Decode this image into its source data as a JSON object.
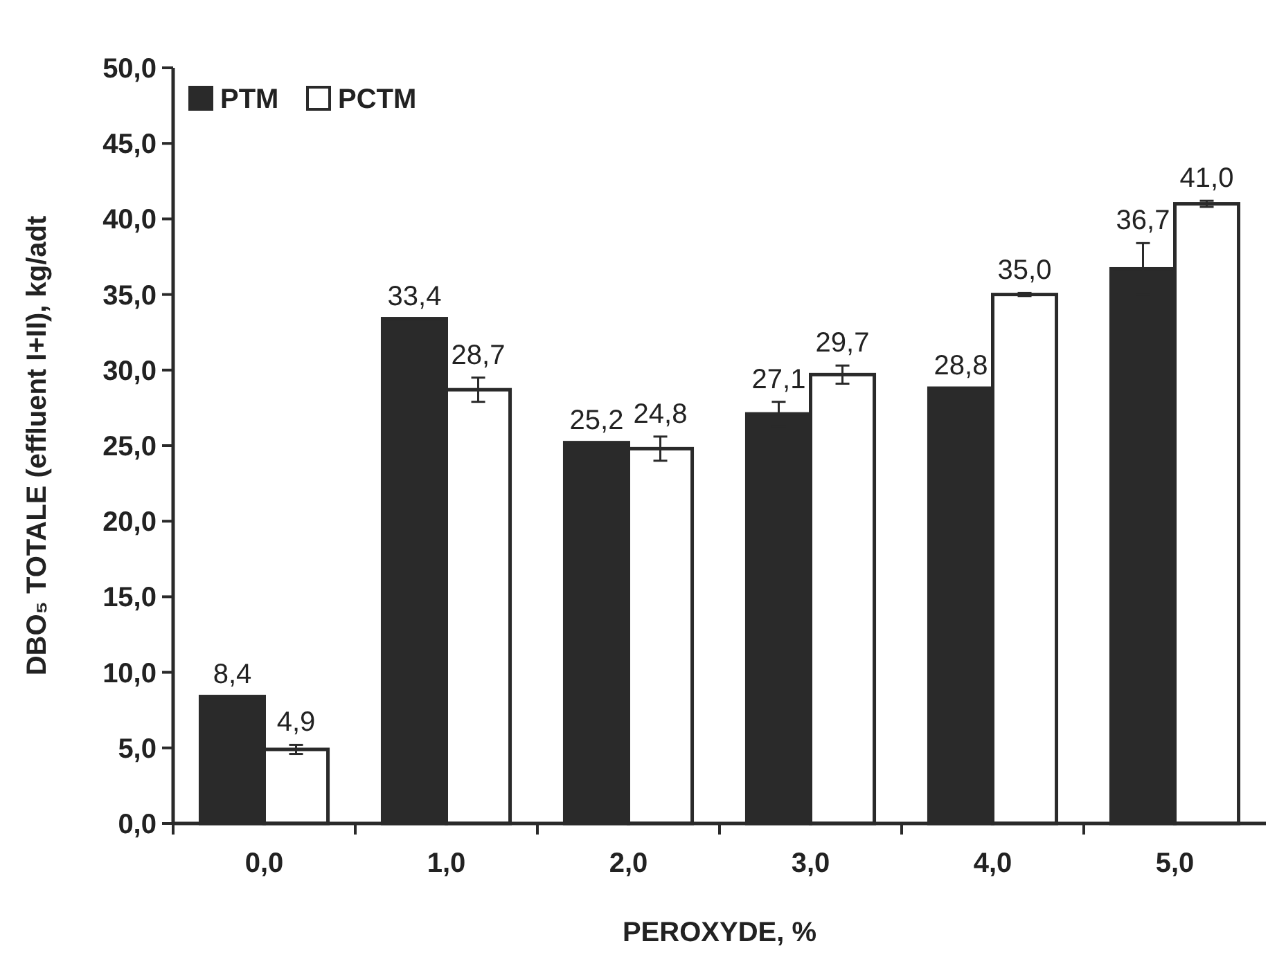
{
  "chart_data": {
    "type": "bar",
    "xlabel": "PEROXYDE, %",
    "ylabel": "DBO₅ TOTALE (effluent I+II), kg/adt",
    "categories": [
      "0,0",
      "1,0",
      "2,0",
      "3,0",
      "4,0",
      "5,0"
    ],
    "series": [
      {
        "name": "PTM",
        "color": "#2a2a2a",
        "values": [
          8.4,
          33.4,
          25.2,
          27.1,
          28.8,
          36.7
        ],
        "errors": [
          null,
          null,
          null,
          0.8,
          null,
          1.7
        ],
        "value_labels": [
          "8,4",
          "33,4",
          "25,2",
          "27,1",
          "28,8",
          "36,7"
        ]
      },
      {
        "name": "PCTM",
        "color": "#ffffff",
        "values": [
          4.9,
          28.7,
          24.8,
          29.7,
          35.0,
          41.0
        ],
        "errors": [
          0.3,
          0.8,
          0.8,
          0.6,
          0.1,
          0.2
        ],
        "value_labels": [
          "4,9",
          "28,7",
          "24,8",
          "29,7",
          "35,0",
          "41,0"
        ]
      }
    ],
    "ylim": [
      0,
      50
    ],
    "yticks": [
      {
        "value": 0,
        "label": "0,0"
      },
      {
        "value": 5,
        "label": "5,0"
      },
      {
        "value": 10,
        "label": "10,0"
      },
      {
        "value": 15,
        "label": "15,0"
      },
      {
        "value": 20,
        "label": "20,0"
      },
      {
        "value": 25,
        "label": "25,0"
      },
      {
        "value": 30,
        "label": "30,0"
      },
      {
        "value": 35,
        "label": "35,0"
      },
      {
        "value": 40,
        "label": "40,0"
      },
      {
        "value": 45,
        "label": "45,0"
      },
      {
        "value": 50,
        "label": "50,0"
      }
    ],
    "legend": "top left",
    "grid": false
  }
}
